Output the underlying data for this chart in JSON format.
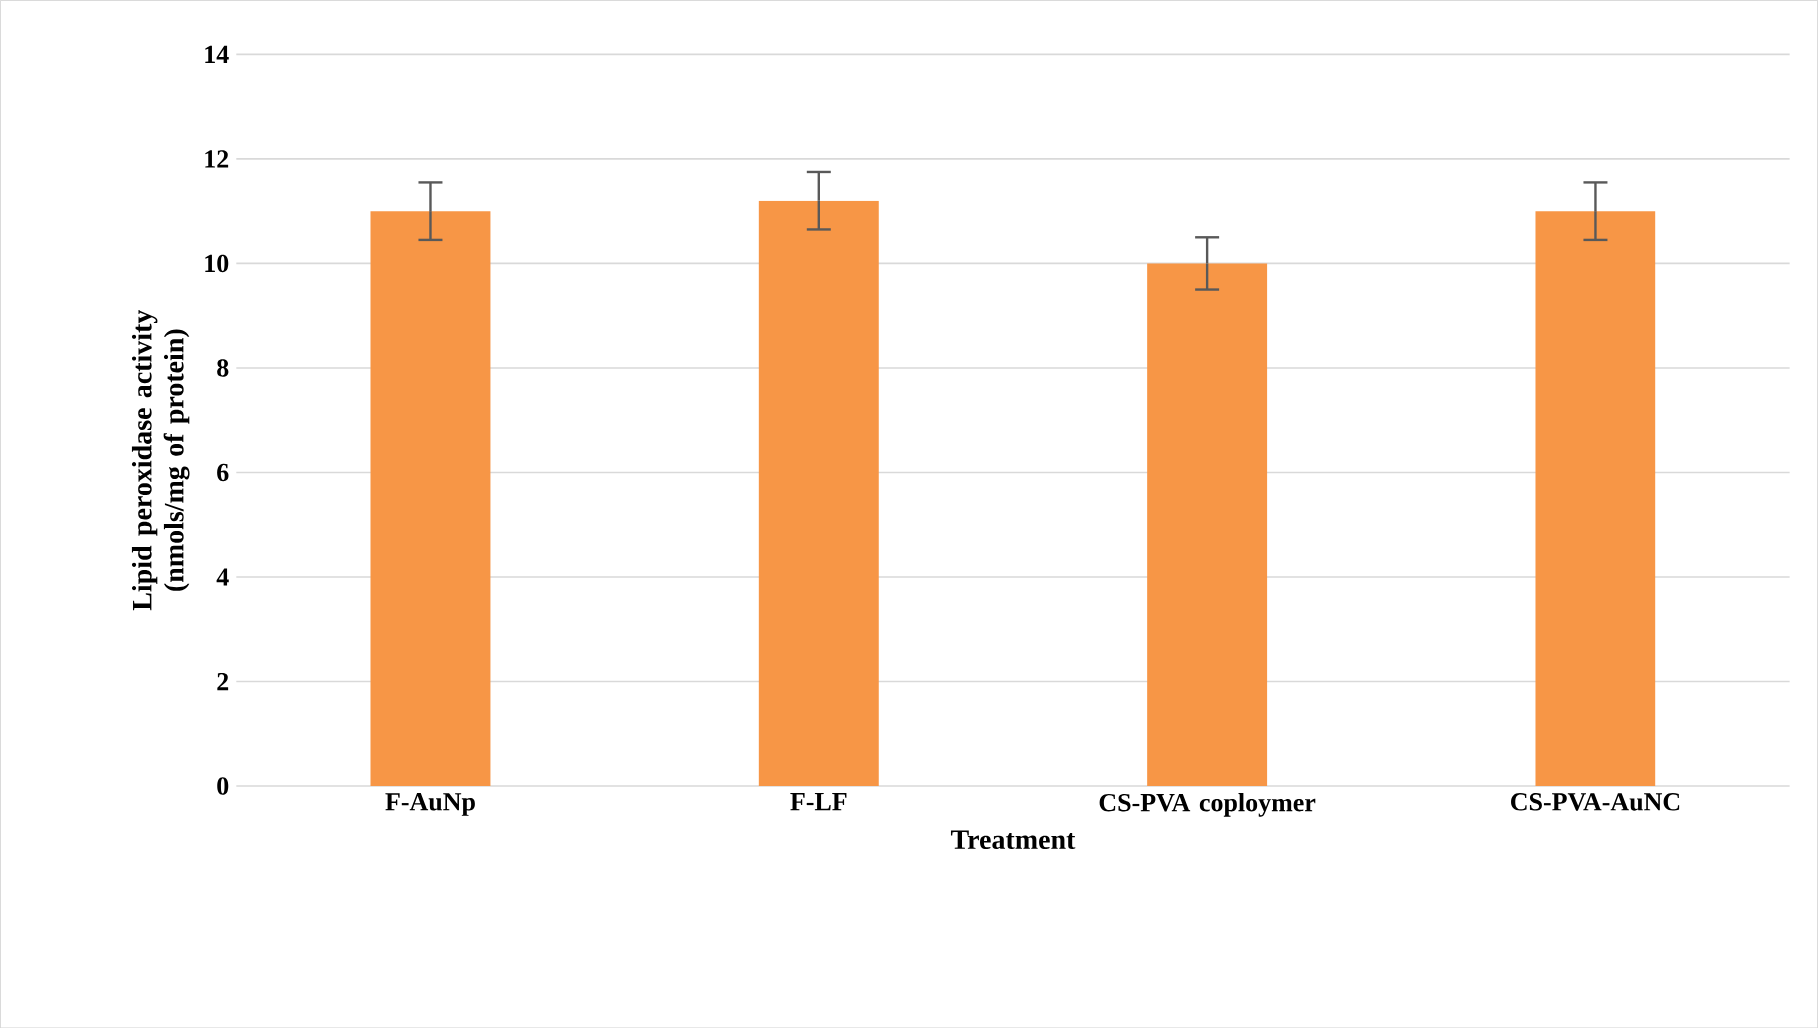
{
  "chart_data": {
    "type": "bar",
    "xlabel": "Treatment",
    "ylabel": "Lipid peroxidase activity (nmols/mg of protein)",
    "categories": [
      "F-AuNp",
      "F-LF",
      "CS-PVA coploymer",
      "CS-PVA-AuNC"
    ],
    "values": [
      11.0,
      11.2,
      10.0,
      11.0
    ],
    "errors": [
      0.55,
      0.55,
      0.5,
      0.55
    ],
    "color": "#f79646",
    "ylim": [
      0,
      14
    ],
    "yticks": [
      0,
      2,
      4,
      6,
      8,
      10,
      12,
      14
    ],
    "grid": "y"
  }
}
